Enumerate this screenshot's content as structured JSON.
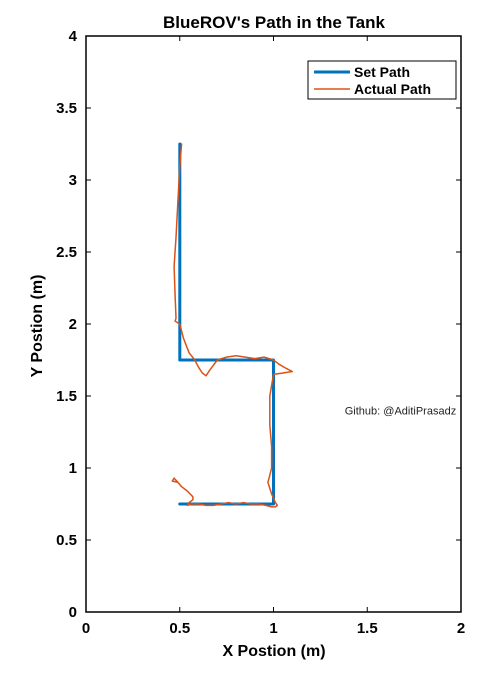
{
  "chart_data": {
    "type": "line",
    "title": "BlueROV's Path in the Tank",
    "xlabel": "X Postion (m)",
    "ylabel": "Y Postion (m)",
    "xlim": [
      0,
      2
    ],
    "ylim": [
      0,
      4
    ],
    "xticks": [
      0,
      0.5,
      1,
      1.5,
      2
    ],
    "yticks": [
      0,
      0.5,
      1,
      1.5,
      2,
      2.5,
      3,
      3.5,
      4
    ],
    "xtick_labels": [
      "0",
      "0.5",
      "1",
      "1.5",
      "2"
    ],
    "ytick_labels": [
      "0",
      "0.5",
      "1",
      "1.5",
      "2",
      "2.5",
      "3",
      "3.5",
      "4"
    ],
    "grid": false,
    "legend_position": "top-right",
    "series": [
      {
        "name": "Set Path",
        "color": "#0072BD",
        "x": [
          0.5,
          0.5,
          1.0,
          1.0,
          0.5
        ],
        "y": [
          3.25,
          1.75,
          1.75,
          0.75,
          0.75
        ]
      },
      {
        "name": "Actual Path",
        "color": "#D95319",
        "x": [
          0.51,
          0.5,
          0.49,
          0.48,
          0.47,
          0.475,
          0.48,
          0.475,
          0.5,
          0.52,
          0.55,
          0.58,
          0.6,
          0.62,
          0.64,
          0.66,
          0.7,
          0.75,
          0.8,
          0.85,
          0.9,
          0.95,
          1.0,
          1.03,
          1.07,
          1.1,
          1.05,
          1.0,
          0.98,
          0.98,
          0.99,
          0.99,
          0.98,
          0.97,
          0.99,
          1.0,
          1.01,
          1.02,
          1.01,
          0.99,
          0.96,
          0.92,
          0.88,
          0.84,
          0.8,
          0.76,
          0.72,
          0.68,
          0.64,
          0.6,
          0.56,
          0.54,
          0.55,
          0.57,
          0.57,
          0.54,
          0.51,
          0.49,
          0.47,
          0.46,
          0.49
        ],
        "y": [
          3.25,
          3.1,
          2.85,
          2.6,
          2.4,
          2.2,
          2.04,
          2.02,
          2.0,
          1.9,
          1.8,
          1.75,
          1.7,
          1.66,
          1.64,
          1.68,
          1.75,
          1.77,
          1.78,
          1.77,
          1.76,
          1.77,
          1.75,
          1.72,
          1.69,
          1.67,
          1.66,
          1.65,
          1.5,
          1.3,
          1.15,
          1.0,
          0.95,
          0.9,
          0.82,
          0.79,
          0.76,
          0.74,
          0.73,
          0.73,
          0.74,
          0.75,
          0.75,
          0.76,
          0.75,
          0.76,
          0.75,
          0.74,
          0.74,
          0.75,
          0.75,
          0.74,
          0.76,
          0.78,
          0.8,
          0.84,
          0.87,
          0.9,
          0.93,
          0.91,
          0.9
        ]
      }
    ],
    "annotations": [
      {
        "text": "Github: @AditiPrasadz",
        "x": 1.38,
        "y": 1.37
      }
    ]
  }
}
